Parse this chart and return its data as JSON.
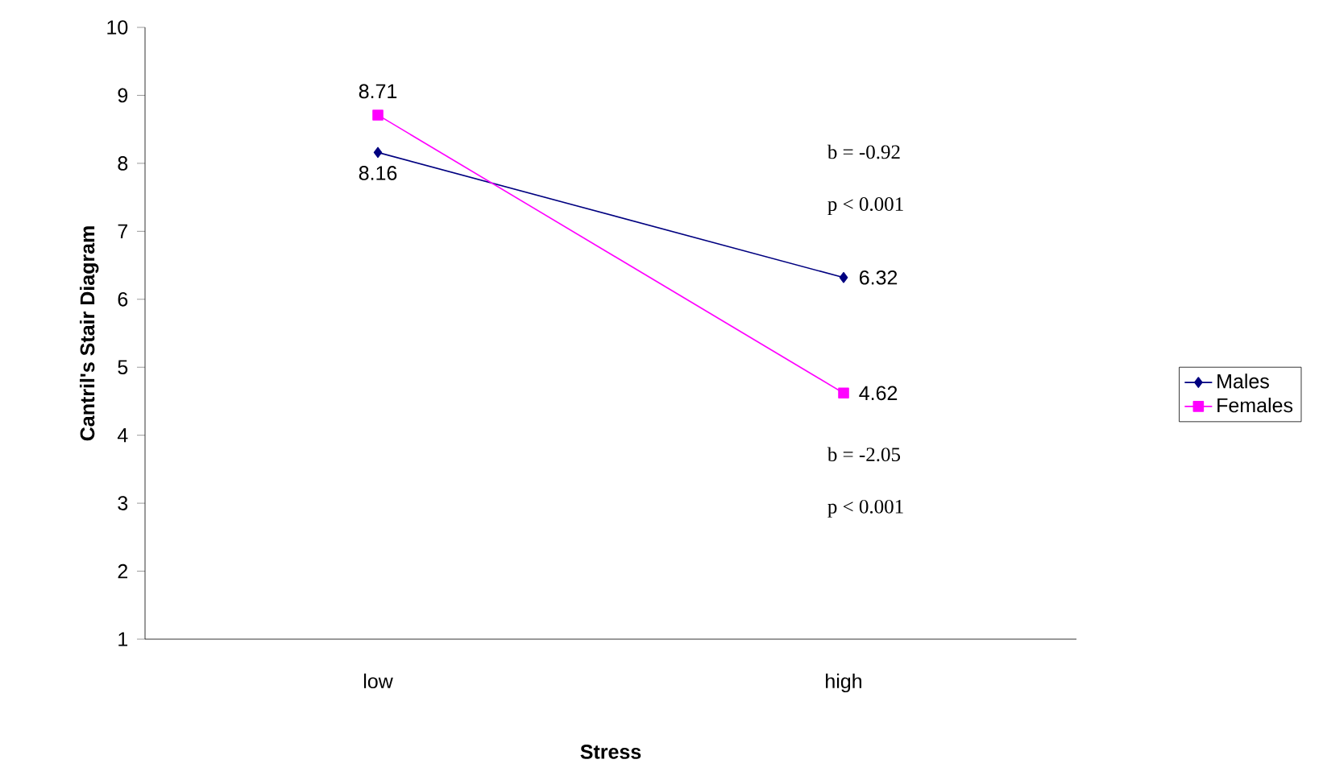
{
  "chart_data": {
    "type": "line",
    "xlabel": "Stress",
    "ylabel": "Cantril's Stair Diagram",
    "categories": [
      "low",
      "high"
    ],
    "series": [
      {
        "name": "Males",
        "color": "#000080",
        "marker": "diamond",
        "values": [
          8.16,
          6.32
        ]
      },
      {
        "name": "Females",
        "color": "#ff00ff",
        "marker": "square",
        "values": [
          8.71,
          4.62
        ]
      }
    ],
    "ylim": [
      1,
      10
    ],
    "yticks": [
      1,
      2,
      3,
      4,
      5,
      6,
      7,
      8,
      9,
      10
    ],
    "data_labels": true,
    "legend": "right",
    "grid": false,
    "annotations": [
      "b = -0.92",
      "p < 0.001",
      "b = -2.05",
      "p < 0.001"
    ]
  }
}
